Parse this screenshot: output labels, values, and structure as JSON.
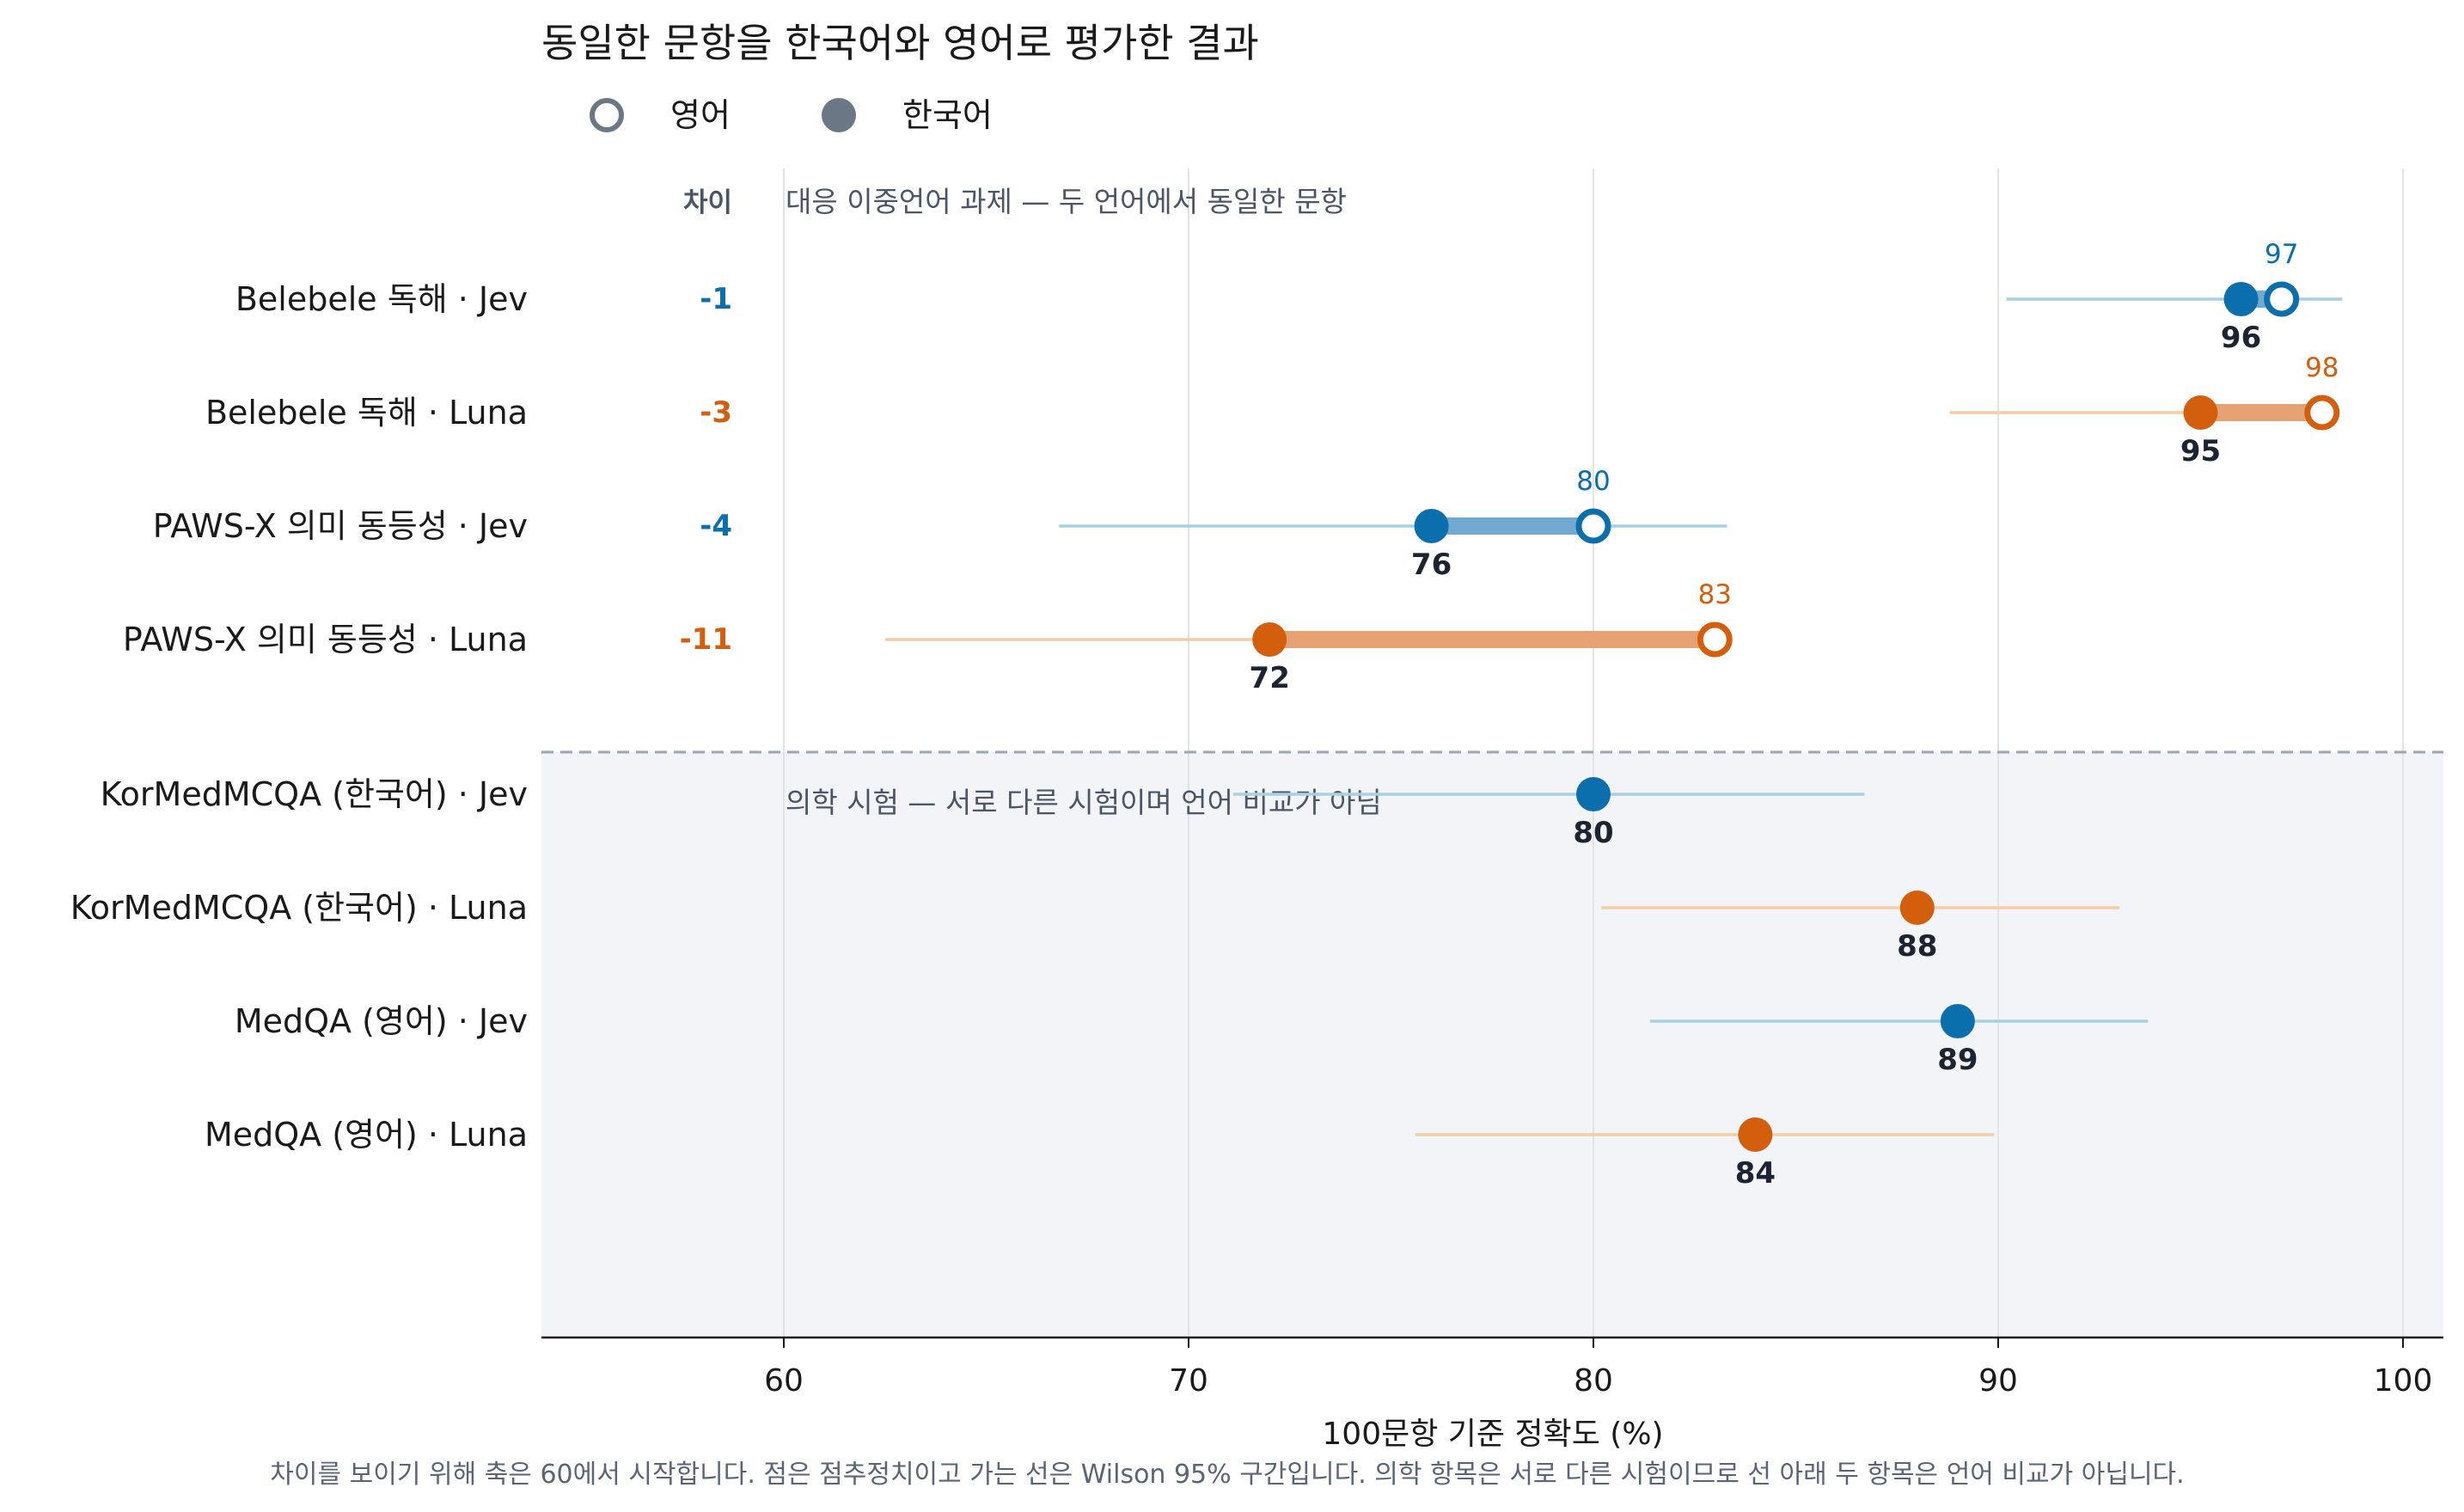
{
  "chart_data": {
    "type": "dumbbell",
    "title": "동일한 문항을 한국어와 영어로 평가한 결과",
    "legend": {
      "placement": "top-left",
      "items": [
        {
          "label": "영어",
          "marker": "hollow-circle"
        },
        {
          "label": "한국어",
          "marker": "filled-circle"
        }
      ]
    },
    "xlabel": "100문항 기준 정확도 (%)",
    "xlim": [
      54,
      101
    ],
    "xticks": [
      "60",
      "70",
      "80",
      "90",
      "100"
    ],
    "grid": "vertical",
    "diff_header": "차이",
    "footnote": "차이를 보이기 위해 축은 60에서 시작합니다. 점은 점추정치이고 가는 선은 Wilson 95% 구간입니다.  의학 항목은 서로 다른 시험이므로 선 아래 두 항목은 언어 비교가 아닙니다.",
    "colors": {
      "Jev": "#0b6fad",
      "Luna": "#d35f0d",
      "ci_Jev": "#a9cfe3",
      "ci_Luna": "#f3cda8",
      "bar_Jev": "#72a9d0",
      "bar_Luna": "#e5a272",
      "band": "#f2f4f8",
      "divider": "#9aa6b8",
      "section_text": "#4a5568",
      "legend": "#6b7785"
    },
    "sections": [
      {
        "title": "대응 이중언어 과제 — 두 언어에서 동일한 문항",
        "rows": [
          {
            "label": "Belebele 독해 · Jev",
            "model": "Jev",
            "korean": 96,
            "english": 97,
            "diff": "-1",
            "ci": [
              90.2,
              98.5
            ]
          },
          {
            "label": "Belebele 독해 · Luna",
            "model": "Luna",
            "korean": 95,
            "english": 98,
            "diff": "-3",
            "ci": [
              88.8,
              98.4
            ]
          },
          {
            "label": "PAWS-X 의미 동등성 · Jev",
            "model": "Jev",
            "korean": 76,
            "english": 80,
            "diff": "-4",
            "ci": [
              66.8,
              83.3
            ]
          },
          {
            "label": "PAWS-X 의미 동등성 · Luna",
            "model": "Luna",
            "korean": 72,
            "english": 83,
            "diff": "-11",
            "ci": [
              62.5,
              80.0
            ]
          }
        ]
      },
      {
        "title": "의학 시험 — 서로 다른 시험이며 언어 비교가 아님",
        "rows": [
          {
            "label": "KorMedMCQA (한국어) · Jev",
            "model": "Jev",
            "value": 80,
            "ci": [
              71.1,
              86.7
            ]
          },
          {
            "label": "KorMedMCQA (한국어) · Luna",
            "model": "Luna",
            "value": 88,
            "ci": [
              80.2,
              93.0
            ]
          },
          {
            "label": "MedQA (영어) · Jev",
            "model": "Jev",
            "value": 89,
            "ci": [
              81.4,
              93.7
            ]
          },
          {
            "label": "MedQA (영어) · Luna",
            "model": "Luna",
            "value": 84,
            "ci": [
              75.6,
              89.9
            ]
          }
        ]
      }
    ]
  }
}
